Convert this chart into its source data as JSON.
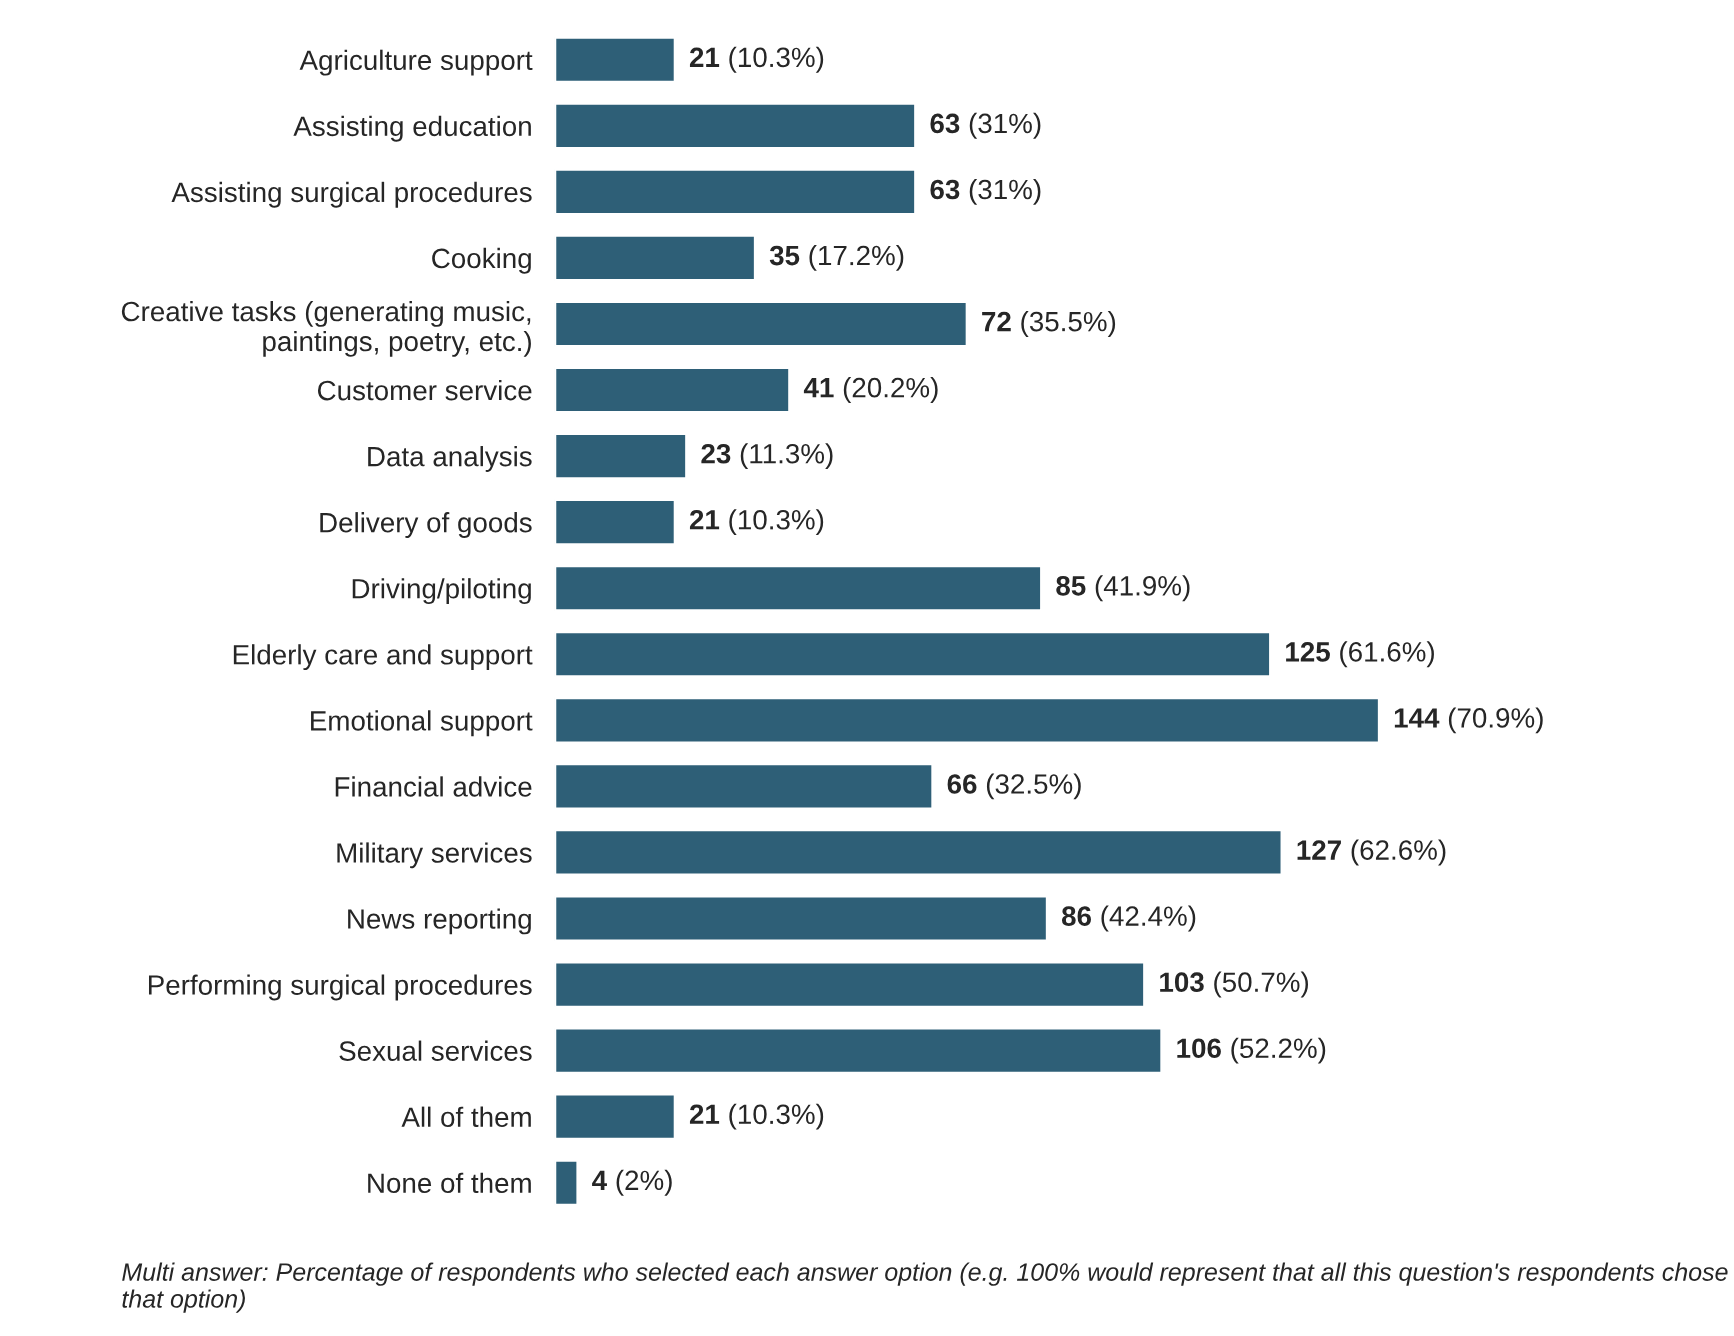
{
  "chart_data": {
    "type": "bar",
    "orientation": "horizontal",
    "categories": [
      "Agriculture support",
      "Assisting education",
      "Assisting surgical procedures",
      "Cooking",
      "Creative tasks (generating music, paintings, poetry, etc.)",
      "Customer service",
      "Data analysis",
      "Delivery of goods",
      "Driving/piloting",
      "Elderly care and support",
      "Emotional support",
      "Financial advice",
      "Military services",
      "News reporting",
      "Performing surgical procedures",
      "Sexual services",
      "All of them",
      "None of them"
    ],
    "values": [
      21,
      63,
      63,
      35,
      72,
      41,
      23,
      21,
      85,
      125,
      144,
      66,
      127,
      86,
      103,
      106,
      21,
      4
    ],
    "value_labels": [
      "21 (10.3%)",
      "63 (31%)",
      "63 (31%)",
      "35 (17.2%)",
      "72 (35.5%)",
      "41 (20.2%)",
      "23 (11.3%)",
      "21 (10.3%)",
      "85 (41.9%)",
      "125 (61.6%)",
      "144 (70.9%)",
      "66 (32.5%)",
      "127 (62.6%)",
      "86 (42.4%)",
      "103 (50.7%)",
      "106 (52.2%)",
      "21 (10.3%)",
      "4 (2%)"
    ],
    "color": "#2e5f77",
    "annotations": [
      "Multi answer: Percentage of respondents who selected each answer option (e.g. 100% would represent that all this question's respondents chose that option)"
    ]
  }
}
